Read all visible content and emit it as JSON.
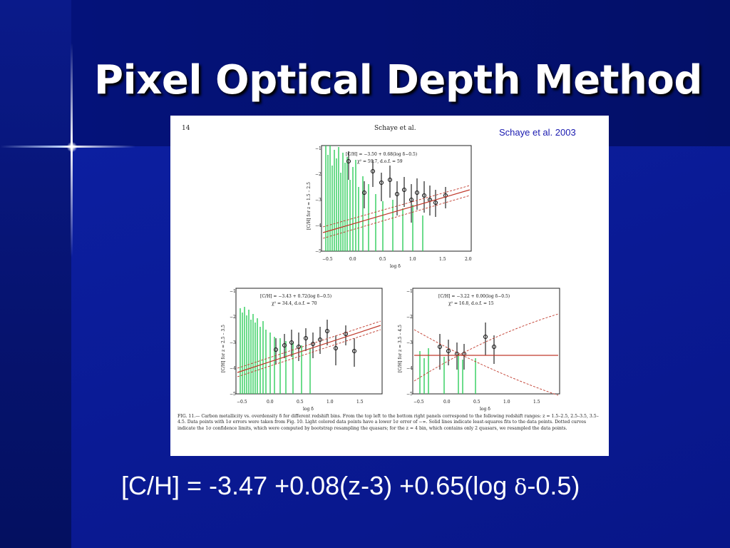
{
  "slide": {
    "title": "Pixel Optical Depth Method",
    "credit": "Schaye et al. 2003",
    "equation_before": "[C/H] = -3.47 +0.08(z-3) +0.65(log ",
    "equation_symbol": "δ",
    "equation_after": "-0.5)"
  },
  "colors": {
    "background": "#0a1a94",
    "title_text": "#ffffff",
    "credit_text": "#1a1ab0",
    "data_green": "#2ecc5a",
    "fit_red": "#c0392b"
  },
  "figure": {
    "page_number": "14",
    "running_head": "Schaye et al.",
    "caption": "FIG. 11.— Carbon metallicity vs. overdensity δ for different redshift bins. From the top left to the bottom right panels correspond to the following redshift ranges: z = 1.5–2.5, 2.5–3.5, 3.5–4.5. Data points with 1σ errors were taken from Fig. 10. Light colored data points have a lower 1σ error of −∞. Solid lines indicate least-squares fits to the data points. Dotted curves indicate the 1σ confidence limits, which were computed by bootstrap resampling the quasars; for the z = 4 bin, which contains only 2 quasars, we resampled the data points.",
    "panels": [
      {
        "id": "top",
        "ylabel": "[C/H] for z = 1.5 – 2.5",
        "xlabel": "log δ",
        "xticks": [
          "−0.5",
          "0.0",
          "0.5",
          "1.0",
          "1.5",
          "2.0"
        ],
        "yticks": [
          "−1",
          "−2",
          "−3",
          "−4",
          "−5"
        ],
        "fit_text_1": "[C/H] = −3.50 + 0.68(log δ−0.5)",
        "fit_text_2": "χ² = 59.7, d.o.f. = 59"
      },
      {
        "id": "bottom-left",
        "ylabel": "[C/H] for z = 2.5 – 3.5",
        "xlabel": "log δ",
        "xticks": [
          "−0.5",
          "0.0",
          "0.5",
          "1.0",
          "1.5"
        ],
        "yticks": [
          "−1",
          "−2",
          "−3",
          "−4",
          "−5"
        ],
        "fit_text_1": "[C/H] = −3.43 + 0.72(log δ−0.5)",
        "fit_text_2": "χ² = 34.4, d.o.f. = 70"
      },
      {
        "id": "bottom-right",
        "ylabel": "[C/H] for z = 3.5 – 4.5",
        "xlabel": "log δ",
        "xticks": [
          "−0.5",
          "0.0",
          "0.5",
          "1.0",
          "1.5"
        ],
        "yticks": [
          "−1",
          "−2",
          "−3",
          "−4",
          "−5"
        ],
        "fit_text_1": "[C/H] = −3.22 + 0.00(log δ−0.5)",
        "fit_text_2": "χ² = 16.8, d.o.f. = 15"
      }
    ]
  }
}
